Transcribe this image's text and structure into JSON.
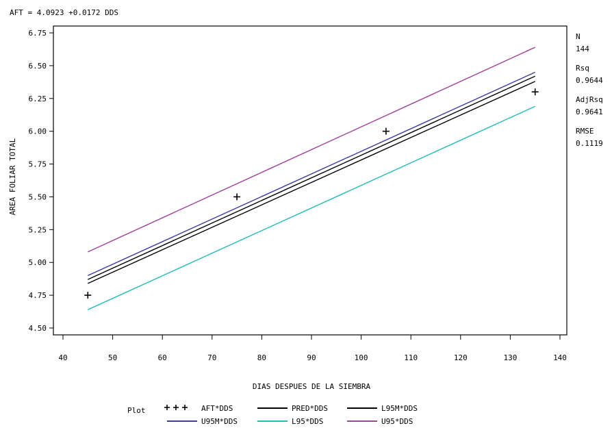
{
  "equation": "AFT = 4.0923 +0.0172 DDS",
  "stats": [
    {
      "label": "N",
      "value": "144"
    },
    {
      "label": "Rsq",
      "value": "0.9644"
    },
    {
      "label": "AdjRsq",
      "value": "0.9641"
    },
    {
      "label": "RMSE",
      "value": "0.1119"
    }
  ],
  "legend": {
    "title": "Plot",
    "items": [
      {
        "label": "AFT*DDS",
        "color": "#000000",
        "kind": "marker"
      },
      {
        "label": "PRED*DDS",
        "color": "#000000",
        "kind": "line"
      },
      {
        "label": "L95M*DDS",
        "color": "#000000",
        "kind": "line"
      },
      {
        "label": "U95M*DDS",
        "color": "#3a3aa0",
        "kind": "line"
      },
      {
        "label": "L95*DDS",
        "color": "#22bbbb",
        "kind": "line"
      },
      {
        "label": "U95*DDS",
        "color": "#a0409a",
        "kind": "line"
      }
    ]
  },
  "chart_data": {
    "type": "line",
    "xlabel": "DIAS DESPUES DE LA SIEMBRA",
    "ylabel": "AREA FOLIAR TOTAL",
    "xlim": [
      40,
      140
    ],
    "ylim": [
      4.5,
      6.75
    ],
    "xticks": [
      "40",
      "50",
      "60",
      "70",
      "80",
      "90",
      "100",
      "110",
      "120",
      "130",
      "140"
    ],
    "yticks": [
      "4.50",
      "4.75",
      "5.00",
      "5.25",
      "5.50",
      "5.75",
      "6.00",
      "6.25",
      "6.50",
      "6.75"
    ],
    "grid": false,
    "legend_position": "bottom",
    "scatter": {
      "name": "AFT*DDS",
      "x": [
        45,
        75,
        105,
        135
      ],
      "y": [
        4.75,
        5.5,
        6.0,
        6.3
      ]
    },
    "series": [
      {
        "name": "U95*DDS",
        "x": [
          45,
          135
        ],
        "y": [
          5.08,
          6.64
        ]
      },
      {
        "name": "U95M*DDS",
        "x": [
          45,
          135
        ],
        "y": [
          4.9,
          6.45
        ]
      },
      {
        "name": "PRED*DDS",
        "x": [
          45,
          135
        ],
        "y": [
          4.87,
          6.42
        ]
      },
      {
        "name": "L95M*DDS",
        "x": [
          45,
          135
        ],
        "y": [
          4.84,
          6.38
        ]
      },
      {
        "name": "L95*DDS",
        "x": [
          45,
          135
        ],
        "y": [
          4.64,
          6.19
        ]
      }
    ]
  }
}
